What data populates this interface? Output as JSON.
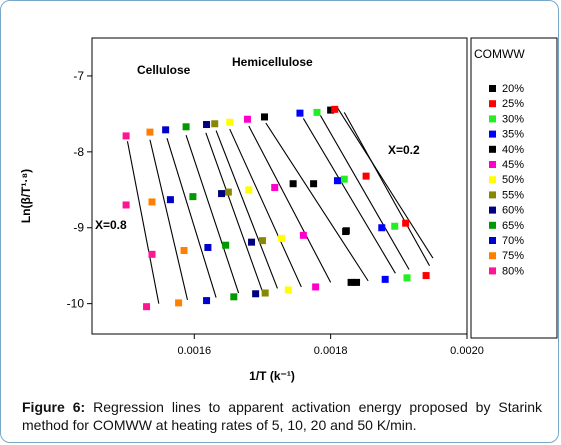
{
  "caption": {
    "label": "Figure 6:",
    "text": "Regression lines to apparent activation energy proposed by Starink method for COMWW at heating rates of 5, 10, 20 and 50 K/min."
  },
  "chart_data": {
    "type": "scatter",
    "title": "",
    "xlabel": "1/T (k⁻¹)",
    "ylabel": "Ln(β/T¹·⁸)",
    "xlim": [
      0.00145,
      0.002
    ],
    "ylim": [
      -10.4,
      -6.5
    ],
    "x_ticks": [
      0.0016,
      0.0018,
      0.002
    ],
    "x_tick_labels": [
      "0.0016",
      "0.0018",
      "0.0020"
    ],
    "y_ticks": [
      -7,
      -8,
      -9,
      -10
    ],
    "y_tick_labels": [
      "-7",
      "-8",
      "-9",
      "-10"
    ],
    "legend_title": "COMWW",
    "legend_position": "right",
    "annotations": [
      "Cellulose",
      "Hemicellulose",
      "X=0.2",
      "X=0.8"
    ],
    "series": [
      {
        "name": "20%",
        "color": "#000000",
        "points": [
          [
            0.0018,
            -7.45
          ],
          [
            0.001775,
            -8.42
          ],
          [
            0.001823,
            -9.04
          ],
          [
            0.00183,
            -9.72
          ]
        ]
      },
      {
        "name": "25%",
        "color": "#ff0000",
        "points": [
          [
            0.001806,
            -7.44
          ],
          [
            0.001852,
            -8.32
          ],
          [
            0.00191,
            -8.94
          ],
          [
            0.00194,
            -9.63
          ]
        ]
      },
      {
        "name": "30%",
        "color": "#22ee22",
        "points": [
          [
            0.00178,
            -7.48
          ],
          [
            0.00182,
            -8.36
          ],
          [
            0.001894,
            -8.98
          ],
          [
            0.001912,
            -9.66
          ]
        ]
      },
      {
        "name": "35%",
        "color": "#0000ff",
        "points": [
          [
            0.001755,
            -7.49
          ],
          [
            0.00181,
            -8.38
          ],
          [
            0.001875,
            -9.0
          ],
          [
            0.00188,
            -9.68
          ]
        ]
      },
      {
        "name": "40%",
        "color": "#000000",
        "points": [
          [
            0.001703,
            -7.54
          ],
          [
            0.001745,
            -8.42
          ],
          [
            0.001822,
            -9.05
          ],
          [
            0.001838,
            -9.72
          ]
        ]
      },
      {
        "name": "45%",
        "color": "#ff00cc",
        "points": [
          [
            0.001678,
            -7.57
          ],
          [
            0.001718,
            -8.47
          ],
          [
            0.00176,
            -9.1
          ],
          [
            0.001778,
            -9.78
          ]
        ]
      },
      {
        "name": "50%",
        "color": "#ffff00",
        "points": [
          [
            0.001652,
            -7.61
          ],
          [
            0.00168,
            -8.5
          ],
          [
            0.001728,
            -9.14
          ],
          [
            0.001738,
            -9.82
          ]
        ]
      },
      {
        "name": "55%",
        "color": "#888800",
        "points": [
          [
            0.00163,
            -7.63
          ],
          [
            0.00165,
            -8.53
          ],
          [
            0.0017,
            -9.17
          ],
          [
            0.001704,
            -9.86
          ]
        ]
      },
      {
        "name": "60%",
        "color": "#000080",
        "points": [
          [
            0.001618,
            -7.64
          ],
          [
            0.00164,
            -8.55
          ],
          [
            0.001684,
            -9.19
          ],
          [
            0.00169,
            -9.87
          ]
        ]
      },
      {
        "name": "65%",
        "color": "#009900",
        "points": [
          [
            0.001588,
            -7.67
          ],
          [
            0.001598,
            -8.59
          ],
          [
            0.001646,
            -9.23
          ],
          [
            0.001658,
            -9.91
          ]
        ]
      },
      {
        "name": "70%",
        "color": "#0000cc",
        "points": [
          [
            0.001558,
            -7.71
          ],
          [
            0.001565,
            -8.63
          ],
          [
            0.00162,
            -9.26
          ],
          [
            0.001618,
            -9.96
          ]
        ]
      },
      {
        "name": "75%",
        "color": "#ff8000",
        "points": [
          [
            0.001535,
            -7.74
          ],
          [
            0.001538,
            -8.66
          ],
          [
            0.001585,
            -9.3
          ],
          [
            0.001577,
            -9.99
          ]
        ]
      },
      {
        "name": "80%",
        "color": "#ff1493",
        "points": [
          [
            0.0015,
            -7.79
          ],
          [
            0.0015,
            -8.7
          ],
          [
            0.001538,
            -9.35
          ],
          [
            0.00153,
            -10.04
          ]
        ]
      }
    ],
    "regression_lines": [
      {
        "name": "20%",
        "from": [
          0.00181,
          -7.42
        ],
        "to": [
          0.00195,
          -9.4
        ]
      },
      {
        "name": "25%",
        "from": [
          0.00182,
          -7.48
        ],
        "to": [
          0.001945,
          -9.5
        ]
      },
      {
        "name": "30%",
        "from": [
          0.001785,
          -7.52
        ],
        "to": [
          0.001915,
          -9.55
        ]
      },
      {
        "name": "35%",
        "from": [
          0.00176,
          -7.56
        ],
        "to": [
          0.001895,
          -9.6
        ]
      },
      {
        "name": "40%",
        "from": [
          0.001705,
          -7.62
        ],
        "to": [
          0.001855,
          -9.7
        ]
      },
      {
        "name": "45%",
        "from": [
          0.00168,
          -7.66
        ],
        "to": [
          0.0018,
          -9.72
        ]
      },
      {
        "name": "50%",
        "from": [
          0.001652,
          -7.7
        ],
        "to": [
          0.001757,
          -9.78
        ]
      },
      {
        "name": "55%",
        "from": [
          0.001632,
          -7.72
        ],
        "to": [
          0.001722,
          -9.8
        ]
      },
      {
        "name": "60%",
        "from": [
          0.001617,
          -7.75
        ],
        "to": [
          0.0017,
          -9.84
        ]
      },
      {
        "name": "65%",
        "from": [
          0.001588,
          -7.78
        ],
        "to": [
          0.001665,
          -9.86
        ]
      },
      {
        "name": "70%",
        "from": [
          0.00156,
          -7.82
        ],
        "to": [
          0.001632,
          -9.92
        ]
      },
      {
        "name": "75%",
        "from": [
          0.001535,
          -7.84
        ],
        "to": [
          0.00159,
          -9.95
        ]
      },
      {
        "name": "80%",
        "from": [
          0.001502,
          -7.86
        ],
        "to": [
          0.001548,
          -10.0
        ]
      }
    ]
  }
}
